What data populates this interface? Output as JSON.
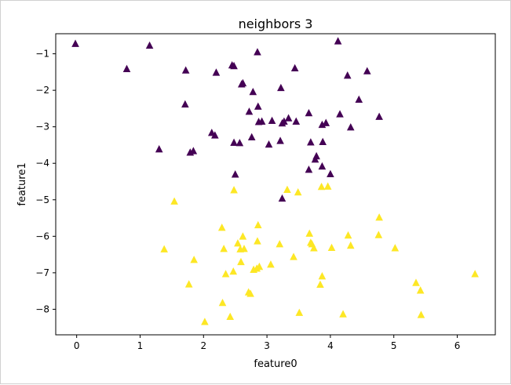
{
  "chart_data": {
    "type": "scatter",
    "title": "neighbors 3",
    "xlabel": "feature0",
    "ylabel": "feature1",
    "xlim": [
      -0.33,
      6.6
    ],
    "ylim": [
      -8.7,
      -0.45
    ],
    "xticks": [
      0,
      1,
      2,
      3,
      4,
      5,
      6
    ],
    "yticks": [
      -1,
      -2,
      -3,
      -4,
      -5,
      -6,
      -7,
      -8
    ],
    "xtick_labels": [
      "0",
      "1",
      "2",
      "3",
      "4",
      "5",
      "6"
    ],
    "ytick_labels": [
      "−1",
      "−2",
      "−3",
      "−4",
      "−5",
      "−6",
      "−7",
      "−8"
    ],
    "grid": false,
    "marker": "triangle",
    "series": [
      {
        "color": "#440154",
        "points": [
          [
            -0.02,
            -0.73
          ],
          [
            0.79,
            -1.42
          ],
          [
            1.15,
            -0.78
          ],
          [
            1.3,
            -3.62
          ],
          [
            1.72,
            -1.46
          ],
          [
            1.71,
            -2.39
          ],
          [
            1.79,
            -3.71
          ],
          [
            1.84,
            -3.67
          ],
          [
            2.13,
            -3.17
          ],
          [
            2.18,
            -3.24
          ],
          [
            2.2,
            -1.52
          ],
          [
            2.45,
            -1.32
          ],
          [
            2.48,
            -1.34
          ],
          [
            2.48,
            -3.44
          ],
          [
            2.5,
            -4.31
          ],
          [
            2.57,
            -3.45
          ],
          [
            2.6,
            -1.84
          ],
          [
            2.62,
            -1.81
          ],
          [
            2.72,
            -2.59
          ],
          [
            2.76,
            -3.29
          ],
          [
            2.78,
            -2.05
          ],
          [
            2.85,
            -0.96
          ],
          [
            2.86,
            -2.45
          ],
          [
            2.87,
            -2.87
          ],
          [
            2.92,
            -2.86
          ],
          [
            3.03,
            -3.49
          ],
          [
            3.08,
            -2.84
          ],
          [
            3.21,
            -3.39
          ],
          [
            3.22,
            -1.94
          ],
          [
            3.24,
            -4.97
          ],
          [
            3.24,
            -2.91
          ],
          [
            3.27,
            -2.86
          ],
          [
            3.34,
            -2.77
          ],
          [
            3.44,
            -1.4
          ],
          [
            3.46,
            -2.86
          ],
          [
            3.66,
            -2.63
          ],
          [
            3.66,
            -4.18
          ],
          [
            3.69,
            -3.43
          ],
          [
            3.76,
            -3.9
          ],
          [
            3.78,
            -3.81
          ],
          [
            3.87,
            -2.95
          ],
          [
            3.87,
            -4.09
          ],
          [
            3.88,
            -3.42
          ],
          [
            3.93,
            -2.9
          ],
          [
            4.0,
            -4.3
          ],
          [
            4.12,
            -0.66
          ],
          [
            4.15,
            -2.66
          ],
          [
            4.27,
            -1.6
          ],
          [
            4.32,
            -3.02
          ],
          [
            4.45,
            -2.26
          ],
          [
            4.58,
            -1.48
          ],
          [
            4.77,
            -2.73
          ]
        ]
      },
      {
        "color": "#fde725",
        "points": [
          [
            1.38,
            -6.36
          ],
          [
            1.54,
            -5.05
          ],
          [
            1.77,
            -7.32
          ],
          [
            1.85,
            -6.65
          ],
          [
            2.02,
            -8.35
          ],
          [
            2.29,
            -5.77
          ],
          [
            2.3,
            -7.83
          ],
          [
            2.32,
            -6.35
          ],
          [
            2.35,
            -7.04
          ],
          [
            2.42,
            -8.21
          ],
          [
            2.47,
            -6.97
          ],
          [
            2.48,
            -4.74
          ],
          [
            2.54,
            -6.2
          ],
          [
            2.58,
            -6.36
          ],
          [
            2.59,
            -6.71
          ],
          [
            2.62,
            -6.01
          ],
          [
            2.64,
            -6.35
          ],
          [
            2.71,
            -7.54
          ],
          [
            2.74,
            -7.58
          ],
          [
            2.79,
            -6.92
          ],
          [
            2.84,
            -6.89
          ],
          [
            2.85,
            -6.14
          ],
          [
            2.86,
            -5.7
          ],
          [
            2.88,
            -6.84
          ],
          [
            3.06,
            -6.78
          ],
          [
            3.2,
            -6.22
          ],
          [
            3.32,
            -4.73
          ],
          [
            3.42,
            -6.57
          ],
          [
            3.49,
            -4.8
          ],
          [
            3.51,
            -8.1
          ],
          [
            3.67,
            -5.93
          ],
          [
            3.69,
            -6.18
          ],
          [
            3.71,
            -6.22
          ],
          [
            3.74,
            -6.33
          ],
          [
            3.84,
            -7.33
          ],
          [
            3.86,
            -4.65
          ],
          [
            3.87,
            -7.1
          ],
          [
            3.96,
            -4.64
          ],
          [
            4.02,
            -6.32
          ],
          [
            4.2,
            -8.14
          ],
          [
            4.28,
            -5.98
          ],
          [
            4.32,
            -6.26
          ],
          [
            4.76,
            -5.97
          ],
          [
            4.77,
            -5.49
          ],
          [
            5.02,
            -6.33
          ],
          [
            5.35,
            -7.28
          ],
          [
            5.42,
            -7.49
          ],
          [
            5.43,
            -8.16
          ],
          [
            6.28,
            -7.04
          ]
        ]
      }
    ]
  }
}
